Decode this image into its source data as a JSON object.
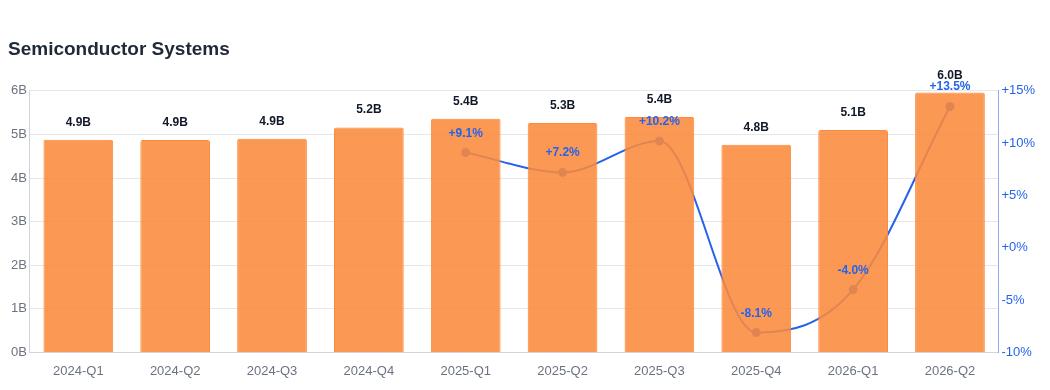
{
  "chart_data": {
    "type": "bar",
    "title": "Semiconductor Systems",
    "categories": [
      "2024-Q1",
      "2024-Q2",
      "2024-Q3",
      "2024-Q4",
      "2025-Q1",
      "2025-Q2",
      "2025-Q3",
      "2025-Q4",
      "2026-Q1",
      "2026-Q2"
    ],
    "series": [
      {
        "color": "#fb8a3c",
        "values": [
          4.88,
          4.87,
          4.9,
          5.16,
          5.36,
          5.26,
          5.4,
          4.76,
          5.1,
          5.96
        ],
        "value_labels": [
          "4.9B",
          "4.9B",
          "4.9B",
          "5.2B",
          "5.4B",
          "5.3B",
          "5.4B",
          "4.8B",
          "5.1B",
          "6.0B"
        ]
      },
      {
        "type": "line",
        "axis": "y2",
        "color": "#2563eb",
        "values": [
          null,
          null,
          null,
          null,
          9.1,
          7.2,
          10.2,
          -8.1,
          -4.0,
          13.5
        ],
        "value_labels": [
          null,
          null,
          null,
          null,
          "+9.1%",
          "+7.2%",
          "+10.2%",
          "-8.1%",
          "-4.0%",
          "+13.5%"
        ]
      }
    ],
    "ylim": [
      0,
      6
    ],
    "yticks": [
      {
        "value": 0,
        "label": "0B"
      },
      {
        "value": 1,
        "label": "1B"
      },
      {
        "value": 2,
        "label": "2B"
      },
      {
        "value": 3,
        "label": "3B"
      },
      {
        "value": 4,
        "label": "4B"
      },
      {
        "value": 5,
        "label": "5B"
      },
      {
        "value": 6,
        "label": "6B"
      }
    ],
    "y2lim": [
      -10,
      15
    ],
    "y2ticks": [
      {
        "value": -10,
        "label": "-10%"
      },
      {
        "value": -5,
        "label": "-5%"
      },
      {
        "value": 0,
        "label": "+0%"
      },
      {
        "value": 5,
        "label": "+5%"
      },
      {
        "value": 10,
        "label": "+10%"
      },
      {
        "value": 15,
        "label": "+15%"
      }
    ],
    "grid": "y",
    "legend": false,
    "marker": "circle"
  }
}
